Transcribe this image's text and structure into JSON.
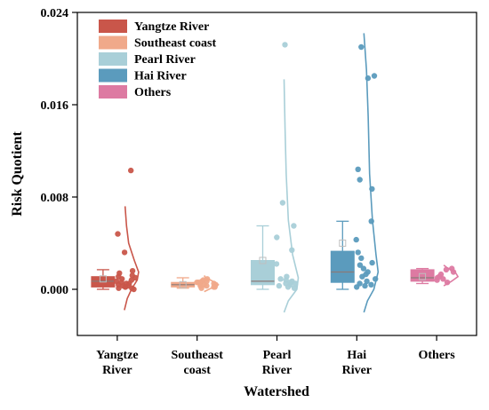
{
  "chart_data": {
    "type": "raincloud",
    "xlabel": "Watershed",
    "ylabel": "Risk Quotient",
    "ylim": [
      -0.004,
      0.024
    ],
    "yticks": [
      "0.000",
      "0.008",
      "0.016",
      "0.024"
    ],
    "ytick_values": [
      0.0,
      0.008,
      0.016,
      0.024
    ],
    "categories": [
      [
        "Yangtze",
        "River"
      ],
      [
        "Southeast",
        "coast"
      ],
      [
        "Pearl",
        "River"
      ],
      [
        "Hai",
        "River"
      ],
      [
        "Others"
      ]
    ],
    "legend_position": "top-left",
    "series": [
      {
        "name": "Yangtze River",
        "color": "#c9564a",
        "box": {
          "min": 0.0,
          "q1": 0.0002,
          "median": 0.0007,
          "q3": 0.0011,
          "max": 0.0017,
          "mean": 0.0009
        },
        "points": [
          0.0103,
          0.0048,
          0.0032,
          0.0016,
          0.0014,
          0.0012,
          0.0011,
          0.001,
          0.0009,
          0.0008,
          0.0007,
          0.0006,
          0.0005,
          0.0005,
          0.0004,
          0.0003,
          0.0003,
          0.0002,
          0.0002,
          0.0001,
          0.0001,
          0.0
        ],
        "density": [
          [
            -0.0018,
            0.0
          ],
          [
            -0.0008,
            0.2
          ],
          [
            0.0,
            0.5
          ],
          [
            0.0008,
            0.9
          ],
          [
            0.0015,
            1.0
          ],
          [
            0.0025,
            0.7
          ],
          [
            0.004,
            0.3
          ],
          [
            0.0055,
            0.15
          ],
          [
            0.0072,
            0.05
          ]
        ]
      },
      {
        "name": "Southeast coast",
        "color": "#f0a98a",
        "box": {
          "min": 0.0001,
          "q1": 0.0002,
          "median": 0.0004,
          "q3": 0.0006,
          "max": 0.001,
          "mean": 0.0004
        },
        "points": [
          0.0009,
          0.0008,
          0.0007,
          0.0007,
          0.0006,
          0.0006,
          0.0005,
          0.0005,
          0.0004,
          0.0004,
          0.0003,
          0.0003,
          0.0002,
          0.0002,
          0.0001
        ],
        "density": [
          [
            -0.0002,
            0.0
          ],
          [
            0.0001,
            0.5
          ],
          [
            0.0004,
            1.0
          ],
          [
            0.0007,
            0.6
          ],
          [
            0.001,
            0.1
          ],
          [
            0.0012,
            0.0
          ]
        ]
      },
      {
        "name": "Pearl River",
        "color": "#a9cfd8",
        "box": {
          "min": 0.0,
          "q1": 0.0004,
          "median": 0.0007,
          "q3": 0.0025,
          "max": 0.0055,
          "mean": 0.0025
        },
        "points": [
          0.0212,
          0.0075,
          0.0055,
          0.0045,
          0.0034,
          0.0022,
          0.0011,
          0.0009,
          0.0008,
          0.0007,
          0.0006,
          0.0005,
          0.0005,
          0.0004,
          0.0003,
          0.0002,
          0.0001
        ],
        "density": [
          [
            -0.002,
            0.0
          ],
          [
            -0.001,
            0.3
          ],
          [
            0.0,
            0.9
          ],
          [
            0.001,
            1.0
          ],
          [
            0.003,
            0.6
          ],
          [
            0.006,
            0.3
          ],
          [
            0.01,
            0.15
          ],
          [
            0.014,
            0.07
          ],
          [
            0.0182,
            0.0
          ]
        ]
      },
      {
        "name": "Hai River",
        "color": "#5b9bbd",
        "box": {
          "min": 0.0,
          "q1": 0.0006,
          "median": 0.0015,
          "q3": 0.0033,
          "max": 0.0059,
          "mean": 0.004
        },
        "points": [
          0.021,
          0.0185,
          0.0183,
          0.0104,
          0.0095,
          0.0087,
          0.0059,
          0.0043,
          0.0032,
          0.0027,
          0.0023,
          0.0021,
          0.0018,
          0.0015,
          0.0013,
          0.0011,
          0.0009,
          0.0007,
          0.0005,
          0.0004,
          0.0003,
          0.0002
        ],
        "density": [
          [
            -0.002,
            0.0
          ],
          [
            -0.001,
            0.25
          ],
          [
            0.0,
            0.7
          ],
          [
            0.0015,
            1.0
          ],
          [
            0.003,
            0.85
          ],
          [
            0.006,
            0.6
          ],
          [
            0.01,
            0.4
          ],
          [
            0.015,
            0.3
          ],
          [
            0.019,
            0.18
          ],
          [
            0.0222,
            0.0
          ]
        ]
      },
      {
        "name": "Others",
        "color": "#dd7aa2",
        "box": {
          "min": 0.0005,
          "q1": 0.0007,
          "median": 0.001,
          "q3": 0.0017,
          "max": 0.0018,
          "mean": 0.0011
        },
        "points": [
          0.0018,
          0.0017,
          0.0015,
          0.0013,
          0.0011,
          0.001,
          0.0009,
          0.0008,
          0.0006
        ],
        "density": [
          [
            0.0003,
            0.0
          ],
          [
            0.0007,
            0.55
          ],
          [
            0.0011,
            1.0
          ],
          [
            0.0015,
            0.8
          ],
          [
            0.0019,
            0.2
          ],
          [
            0.0021,
            0.0
          ]
        ]
      }
    ]
  }
}
